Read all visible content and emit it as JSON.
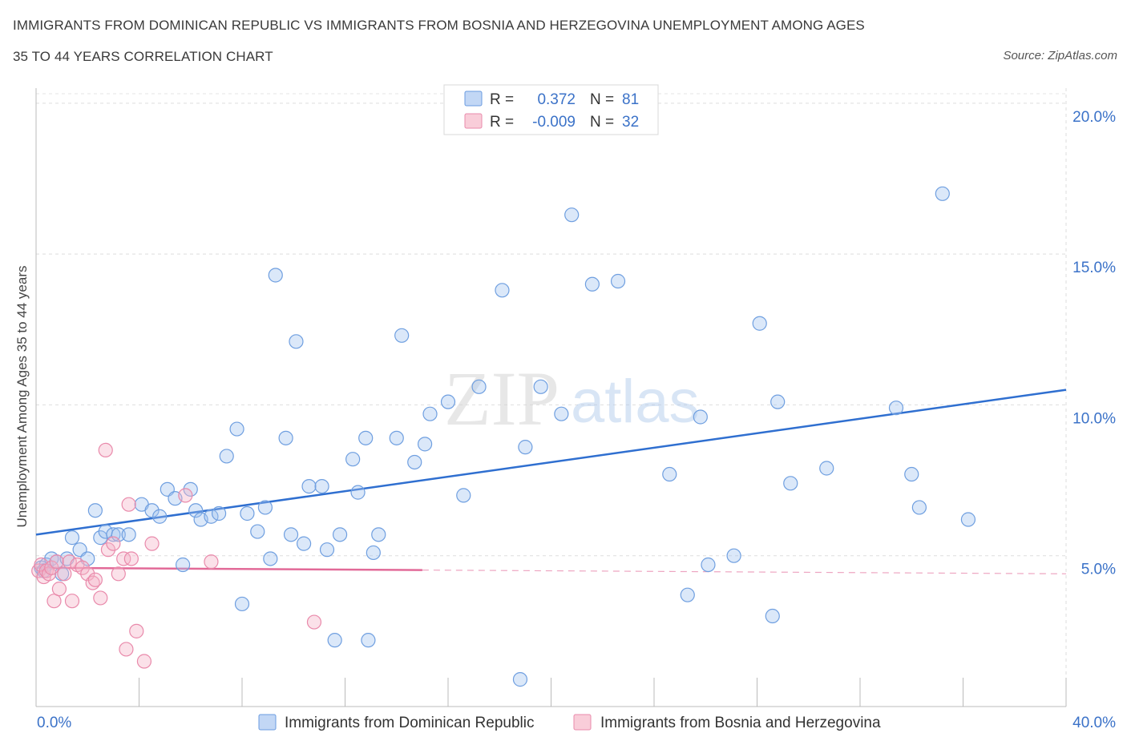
{
  "title_line1": "IMMIGRANTS FROM DOMINICAN REPUBLIC VS IMMIGRANTS FROM BOSNIA AND HERZEGOVINA UNEMPLOYMENT AMONG AGES",
  "title_line2": "35 TO 44 YEARS CORRELATION CHART",
  "source": "Source: ZipAtlas.com",
  "watermark": {
    "zip": "ZIP",
    "atlas": "atlas"
  },
  "legend_box": {
    "r_label": "R =",
    "n_label": "N =",
    "rows": [
      {
        "r": "0.372",
        "n": "81"
      },
      {
        "r": "-0.009",
        "n": "32"
      }
    ]
  },
  "chart_data": {
    "type": "scatter",
    "title": "IMMIGRANTS FROM DOMINICAN REPUBLIC VS IMMIGRANTS FROM BOSNIA AND HERZEGOVINA UNEMPLOYMENT AMONG AGES 35 TO 44 YEARS CORRELATION CHART",
    "xlabel": "",
    "ylabel": "Unemployment Among Ages 35 to 44 years",
    "xlim": [
      0,
      40
    ],
    "ylim": [
      0,
      20.5
    ],
    "x_tick_labels": [
      "0.0%",
      "40.0%"
    ],
    "y_ticks": [
      5,
      10,
      15,
      20
    ],
    "y_tick_labels": [
      "5.0%",
      "10.0%",
      "15.0%",
      "20.0%"
    ],
    "grid": true,
    "legend_position": "bottom",
    "colors": {
      "blue": "#5b8fd9",
      "blue_line": "#2f6fd0",
      "pink": "#e98aab",
      "pink_line": "#e26a98",
      "tick_text": "#3b72c8"
    },
    "series": [
      {
        "name": "Immigrants from Dominican Republic",
        "color": "#5b8fd9",
        "R": 0.372,
        "N": 81,
        "trend": {
          "x0": 0,
          "y0": 5.7,
          "x1": 40,
          "y1": 10.5,
          "dashed_from": null
        },
        "points": [
          [
            0.2,
            4.6
          ],
          [
            0.4,
            4.7
          ],
          [
            0.6,
            4.9
          ],
          [
            0.8,
            4.8
          ],
          [
            1.0,
            4.4
          ],
          [
            1.2,
            4.9
          ],
          [
            1.4,
            5.6
          ],
          [
            1.7,
            5.2
          ],
          [
            2.0,
            4.9
          ],
          [
            2.3,
            6.5
          ],
          [
            2.5,
            5.6
          ],
          [
            2.7,
            5.8
          ],
          [
            3.0,
            5.7
          ],
          [
            3.2,
            5.7
          ],
          [
            3.6,
            5.7
          ],
          [
            4.1,
            6.7
          ],
          [
            4.5,
            6.5
          ],
          [
            4.8,
            6.3
          ],
          [
            5.1,
            7.2
          ],
          [
            5.4,
            6.9
          ],
          [
            5.7,
            4.7
          ],
          [
            6.0,
            7.2
          ],
          [
            6.2,
            6.5
          ],
          [
            6.4,
            6.2
          ],
          [
            6.8,
            6.3
          ],
          [
            7.1,
            6.4
          ],
          [
            7.4,
            8.3
          ],
          [
            7.8,
            9.2
          ],
          [
            8.0,
            3.4
          ],
          [
            8.2,
            6.4
          ],
          [
            8.6,
            5.8
          ],
          [
            8.9,
            6.6
          ],
          [
            9.1,
            4.9
          ],
          [
            9.3,
            14.3
          ],
          [
            9.7,
            8.9
          ],
          [
            9.9,
            5.7
          ],
          [
            10.1,
            12.1
          ],
          [
            10.4,
            5.4
          ],
          [
            10.6,
            7.3
          ],
          [
            11.1,
            7.3
          ],
          [
            11.3,
            5.2
          ],
          [
            11.6,
            2.2
          ],
          [
            11.8,
            5.7
          ],
          [
            12.3,
            8.2
          ],
          [
            12.5,
            7.1
          ],
          [
            12.8,
            8.9
          ],
          [
            12.9,
            2.2
          ],
          [
            13.1,
            5.1
          ],
          [
            13.3,
            5.7
          ],
          [
            14.0,
            8.9
          ],
          [
            14.2,
            12.3
          ],
          [
            14.7,
            8.1
          ],
          [
            15.1,
            8.7
          ],
          [
            15.3,
            9.7
          ],
          [
            16.0,
            10.1
          ],
          [
            16.6,
            7.0
          ],
          [
            17.2,
            10.6
          ],
          [
            18.1,
            13.8
          ],
          [
            18.8,
            0.9
          ],
          [
            19.0,
            8.6
          ],
          [
            19.6,
            10.6
          ],
          [
            20.4,
            9.7
          ],
          [
            20.8,
            16.3
          ],
          [
            21.6,
            14.0
          ],
          [
            22.6,
            14.1
          ],
          [
            24.6,
            7.7
          ],
          [
            25.3,
            3.7
          ],
          [
            25.8,
            9.6
          ],
          [
            26.1,
            4.7
          ],
          [
            27.1,
            5.0
          ],
          [
            28.6,
            3.0
          ],
          [
            28.1,
            12.7
          ],
          [
            28.8,
            10.1
          ],
          [
            29.3,
            7.4
          ],
          [
            30.7,
            7.9
          ],
          [
            33.4,
            9.9
          ],
          [
            34.0,
            7.7
          ],
          [
            34.3,
            6.6
          ],
          [
            35.2,
            17.0
          ],
          [
            36.2,
            6.2
          ],
          [
            0.3,
            4.5
          ]
        ]
      },
      {
        "name": "Immigrants from Bosnia and Herzegovina",
        "color": "#e98aab",
        "R": -0.009,
        "N": 32,
        "trend": {
          "x0": 0,
          "y0": 4.6,
          "x1": 40,
          "y1": 4.4,
          "dashed_from": 15
        },
        "points": [
          [
            0.1,
            4.5
          ],
          [
            0.2,
            4.7
          ],
          [
            0.3,
            4.3
          ],
          [
            0.4,
            4.5
          ],
          [
            0.5,
            4.4
          ],
          [
            0.6,
            4.6
          ],
          [
            0.7,
            3.5
          ],
          [
            0.8,
            4.8
          ],
          [
            0.9,
            3.9
          ],
          [
            1.1,
            4.4
          ],
          [
            1.3,
            4.8
          ],
          [
            1.4,
            3.5
          ],
          [
            1.6,
            4.7
          ],
          [
            1.8,
            4.6
          ],
          [
            2.0,
            4.4
          ],
          [
            2.2,
            4.1
          ],
          [
            2.3,
            4.2
          ],
          [
            2.5,
            3.6
          ],
          [
            2.7,
            8.5
          ],
          [
            2.8,
            5.2
          ],
          [
            3.0,
            5.4
          ],
          [
            3.2,
            4.4
          ],
          [
            3.4,
            4.9
          ],
          [
            3.5,
            1.9
          ],
          [
            3.6,
            6.7
          ],
          [
            3.7,
            4.9
          ],
          [
            3.9,
            2.5
          ],
          [
            4.2,
            1.5
          ],
          [
            4.5,
            5.4
          ],
          [
            5.8,
            7.0
          ],
          [
            6.8,
            4.8
          ],
          [
            10.8,
            2.8
          ]
        ]
      }
    ]
  }
}
